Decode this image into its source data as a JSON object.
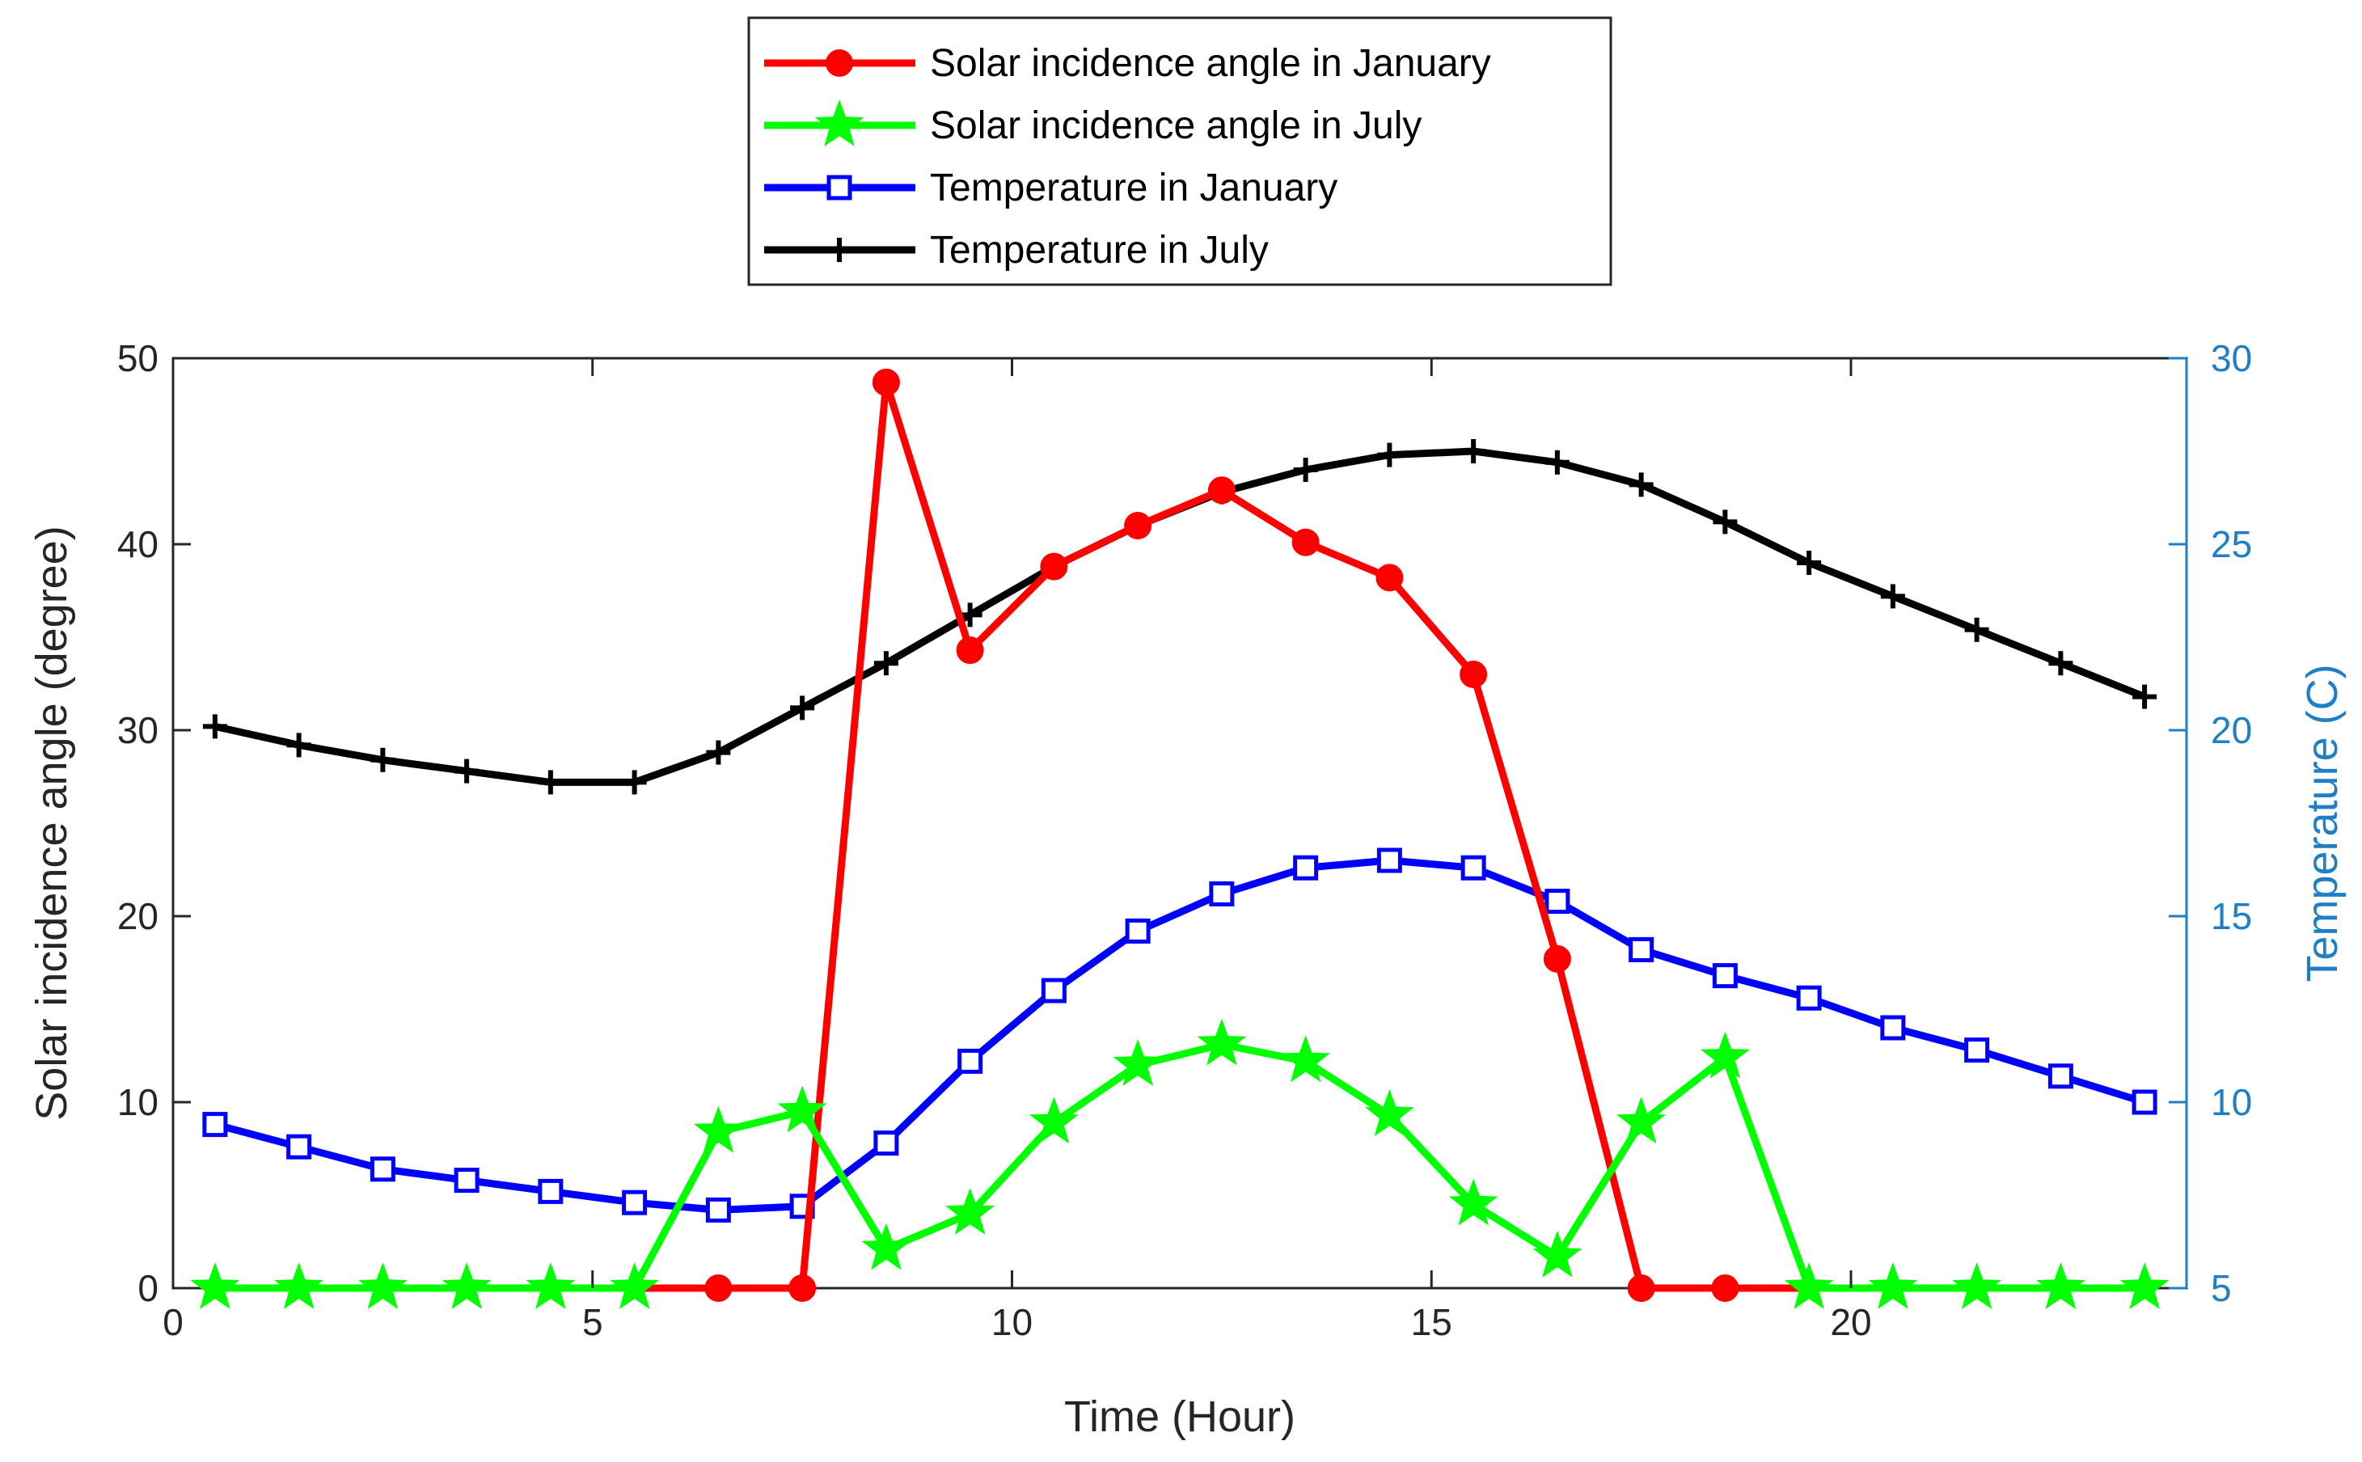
{
  "chart_data": {
    "type": "line",
    "title": "",
    "xlabel": "Time (Hour)",
    "ylabel_left": "Solar incidence angle (degree)",
    "ylabel_right": "Temperature (C)",
    "xlim": [
      0,
      24
    ],
    "ylim_left": [
      0,
      50
    ],
    "ylim_right": [
      5,
      30
    ],
    "xticks": [
      0,
      5,
      10,
      15,
      20
    ],
    "yticks_left": [
      0,
      10,
      20,
      30,
      40,
      50
    ],
    "yticks_right": [
      5,
      10,
      15,
      20,
      25,
      30
    ],
    "grid": false,
    "legend_position": "top-center",
    "x": [
      0.5,
      1.5,
      2.5,
      3.5,
      4.5,
      5.5,
      6.5,
      7.5,
      8.5,
      9.5,
      10.5,
      11.5,
      12.5,
      13.5,
      14.5,
      15.5,
      16.5,
      17.5,
      18.5,
      19.5,
      20.5,
      21.5,
      22.5,
      23.5
    ],
    "right_axis_color": "#1e7fc7",
    "series": [
      {
        "name": "Solar incidence angle in January",
        "axis": "left",
        "color": "#ff0000",
        "marker": "circle",
        "x": [
          5.5,
          6.5,
          7.5,
          8.5,
          9.5,
          10.5,
          11.5,
          12.5,
          13.5,
          14.5,
          15.5,
          16.5,
          17.5,
          18.5,
          19.5
        ],
        "values": [
          0,
          0,
          0,
          48.7,
          34.3,
          38.8,
          41.0,
          42.9,
          40.1,
          38.2,
          33.0,
          17.7,
          0,
          0,
          0
        ],
        "marker_mask": [
          false,
          true,
          true,
          true,
          true,
          true,
          true,
          true,
          true,
          true,
          true,
          true,
          true,
          true,
          false
        ]
      },
      {
        "name": "Solar incidence angle in July",
        "axis": "left",
        "color": "#00ff00",
        "marker": "star",
        "values": [
          0,
          0,
          0,
          0,
          0,
          0,
          8.4,
          9.5,
          2.1,
          4.0,
          8.9,
          12.0,
          13.1,
          12.2,
          9.3,
          4.5,
          1.7,
          8.9,
          12.4,
          0,
          0,
          0,
          0,
          0
        ]
      },
      {
        "name": "Temperature in January",
        "axis": "right",
        "color": "#0000ff",
        "marker": "square",
        "values": [
          9.4,
          8.8,
          8.2,
          7.9,
          7.6,
          7.3,
          7.1,
          7.2,
          8.9,
          11.1,
          13.0,
          14.6,
          15.6,
          16.3,
          16.5,
          16.3,
          15.4,
          14.1,
          13.4,
          12.8,
          12.0,
          11.4,
          10.7,
          10.0
        ]
      },
      {
        "name": "Temperature in July",
        "axis": "right",
        "color": "#000000",
        "marker": "plus",
        "values": [
          20.1,
          19.6,
          19.2,
          18.9,
          18.6,
          18.6,
          19.4,
          20.6,
          21.8,
          23.1,
          24.4,
          25.5,
          26.4,
          27.0,
          27.4,
          27.5,
          27.2,
          26.6,
          25.6,
          24.5,
          23.6,
          22.7,
          21.8,
          20.9
        ]
      }
    ]
  }
}
